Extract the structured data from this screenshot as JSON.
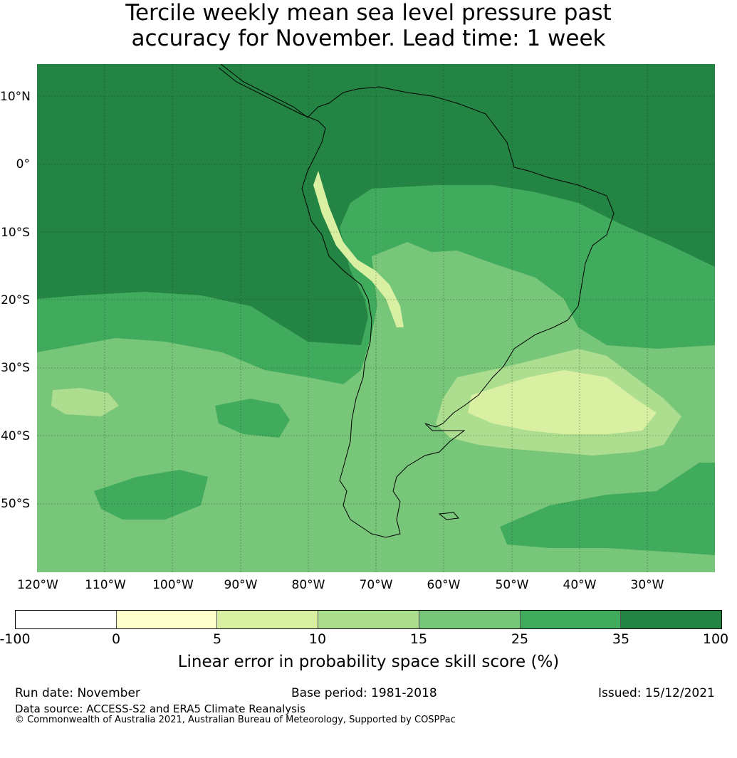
{
  "title": {
    "line1": "Tercile weekly mean sea level pressure past",
    "line2": "accuracy for November. Lead time: 1 week"
  },
  "axes": {
    "lat_labels": [
      "10°N",
      "0°",
      "10°S",
      "20°S",
      "30°S",
      "40°S",
      "50°S"
    ],
    "lon_labels": [
      "120°W",
      "110°W",
      "100°W",
      "90°W",
      "80°W",
      "70°W",
      "60°W",
      "50°W",
      "40°W",
      "30°W"
    ]
  },
  "map": {
    "region": "South America",
    "grid": true,
    "colors": {
      "c35_100": "#238443",
      "c25_35": "#41ab5d",
      "c15_25": "#78c679",
      "c10_15": "#addd8e",
      "c5_10": "#d9f0a3",
      "c0_5": "#ffffcc"
    }
  },
  "colorbar": {
    "ticks": [
      "-100",
      "0",
      "5",
      "10",
      "15",
      "25",
      "35",
      "100"
    ],
    "colors": [
      "#ffffff",
      "#ffffcc",
      "#d9f0a3",
      "#addd8e",
      "#78c679",
      "#41ab5d",
      "#238443"
    ],
    "label": "Linear error in probability space skill score (%)"
  },
  "footer": {
    "run_date": "Run date: November",
    "base_period": "Base period: 1981-2018",
    "issued": "Issued: 15/12/2021",
    "data_source": "Data source: ACCESS-S2 and ERA5 Climate Reanalysis",
    "copyright": "© Commonwealth of Australia 2021, Australian Bureau of Meteorology, Supported by COSPPac"
  }
}
